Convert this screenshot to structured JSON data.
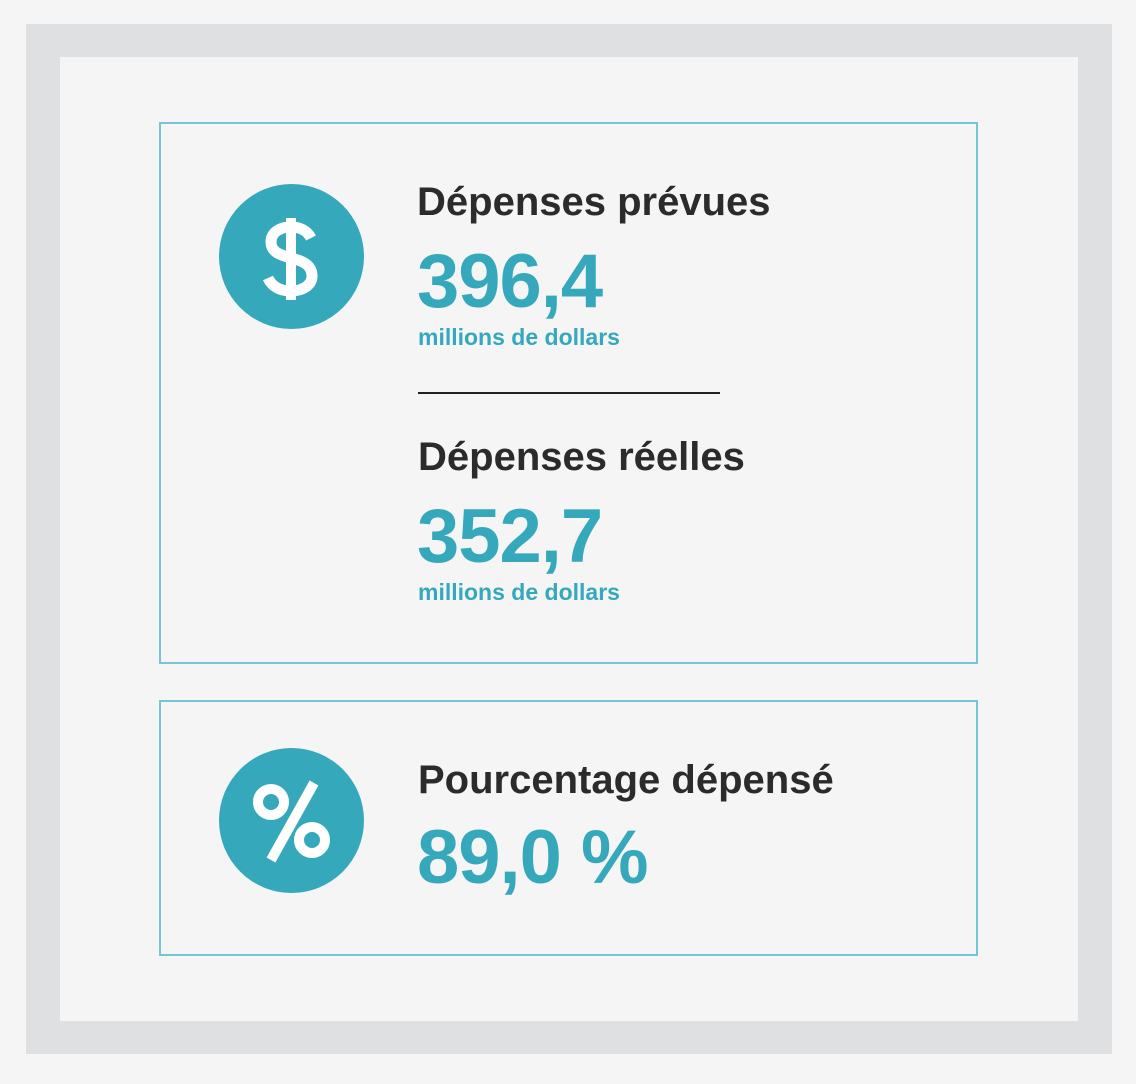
{
  "planned": {
    "label": "Dépenses prévues",
    "value": "396,4",
    "unit": "millions de dollars"
  },
  "actual": {
    "label": "Dépenses réelles",
    "value": "352,7",
    "unit": "millions de dollars"
  },
  "percent_spent": {
    "label": "Pourcentage dépensé",
    "value": "89,0 %"
  },
  "colors": {
    "accent": "#35a9bb",
    "card_border": "#74c6d3",
    "heading_text": "#2b2b2b",
    "outer_frame": "#dfe0e1",
    "background": "#f5f5f5"
  },
  "icons": {
    "top": "dollar-icon",
    "bottom": "percent-icon"
  }
}
